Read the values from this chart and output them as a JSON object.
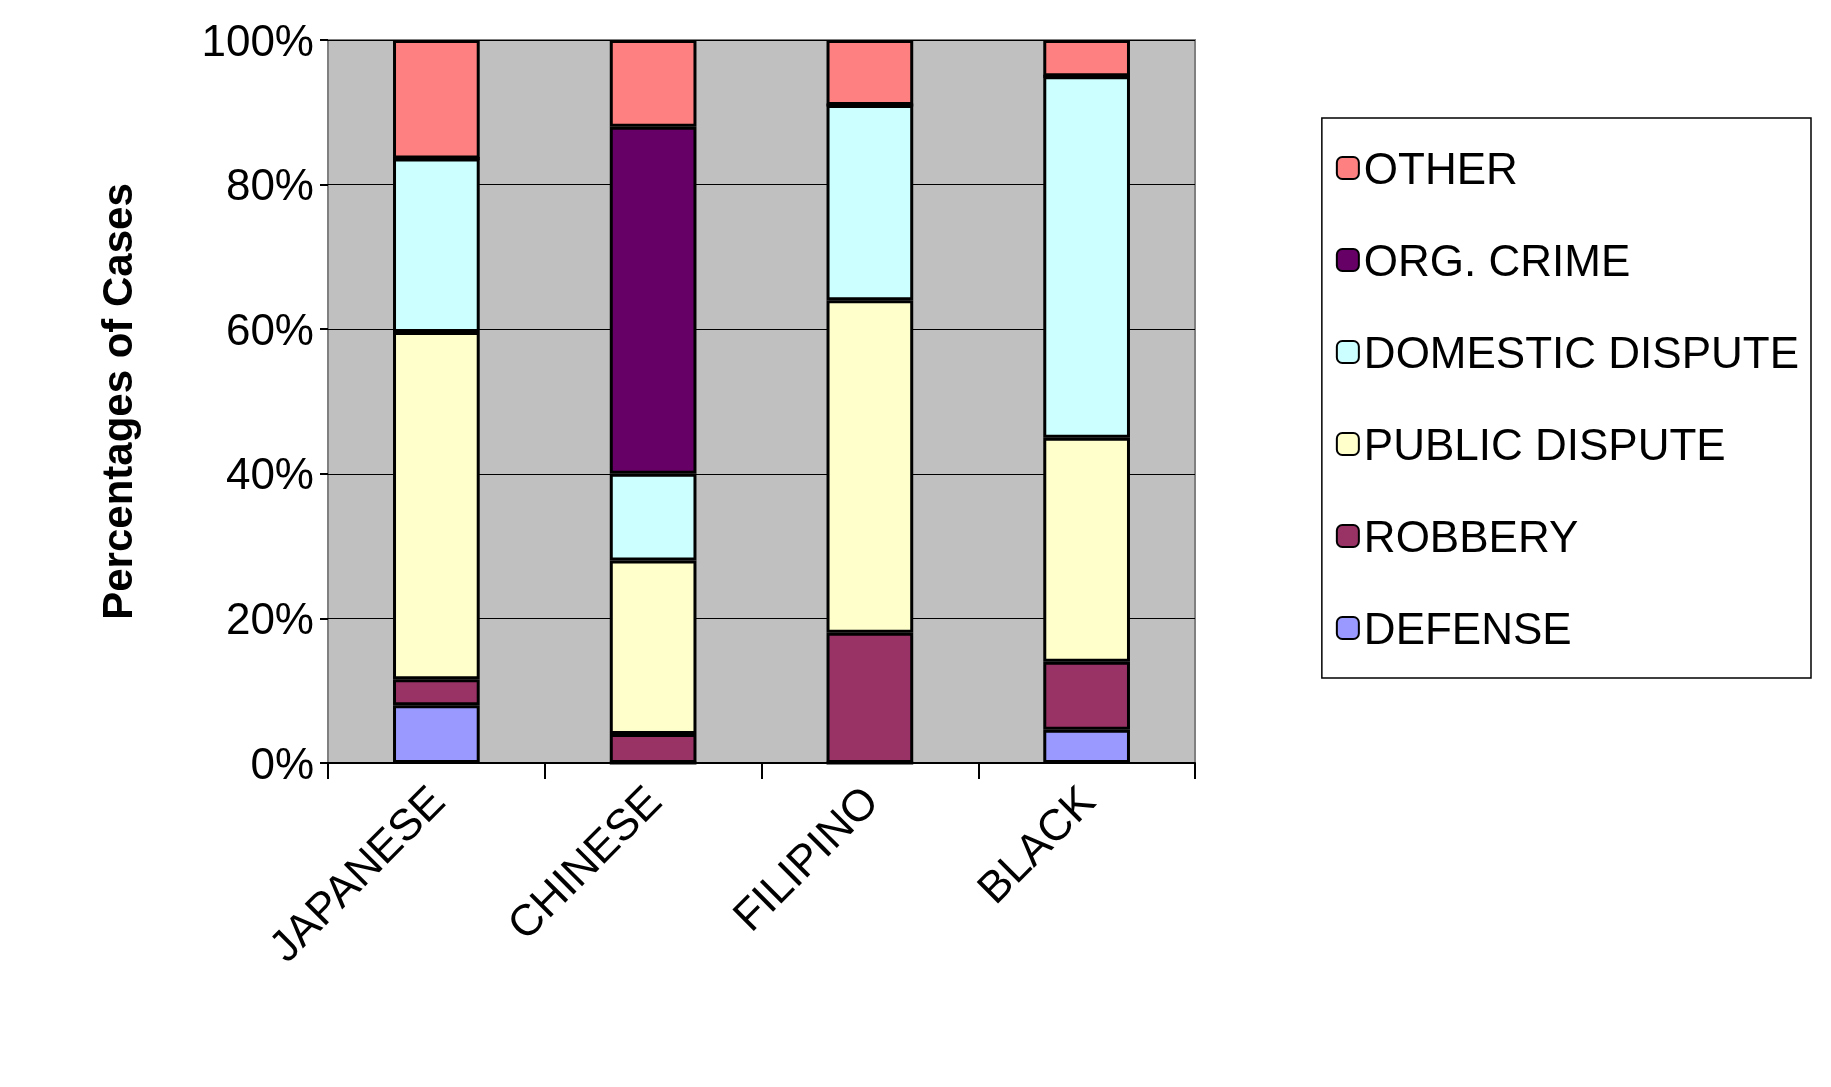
{
  "chart_data": {
    "type": "bar",
    "stacked": true,
    "ylabel": "Percentages of Cases",
    "categories": [
      "JAPANESE",
      "CHINESE",
      "FILIPINO",
      "BLACK"
    ],
    "series": [
      {
        "name": "DEFENSE",
        "color": "#9999ff",
        "values": [
          8,
          0,
          0,
          4.6
        ]
      },
      {
        "name": "ROBBERY",
        "color": "#993366",
        "values": [
          3.6,
          4,
          18,
          9.4
        ]
      },
      {
        "name": "PUBLIC DISPUTE",
        "color": "#ffffcc",
        "values": [
          48,
          24,
          46,
          31
        ]
      },
      {
        "name": "DOMESTIC DISPUTE",
        "color": "#ccffff",
        "values": [
          24,
          12,
          27,
          50
        ]
      },
      {
        "name": "ORG. CRIME",
        "color": "#660066",
        "values": [
          0,
          48,
          0,
          0
        ]
      },
      {
        "name": "OTHER",
        "color": "#ff8080",
        "values": [
          16.4,
          12,
          9,
          5
        ]
      }
    ],
    "ylim": [
      0,
      100
    ],
    "yticks": [
      {
        "value": 0,
        "label": "0%"
      },
      {
        "value": 20,
        "label": "20%"
      },
      {
        "value": 40,
        "label": "40%"
      },
      {
        "value": 60,
        "label": "60%"
      },
      {
        "value": 80,
        "label": "80%"
      },
      {
        "value": 100,
        "label": "100%"
      }
    ],
    "grid": "y",
    "legend": "right"
  }
}
